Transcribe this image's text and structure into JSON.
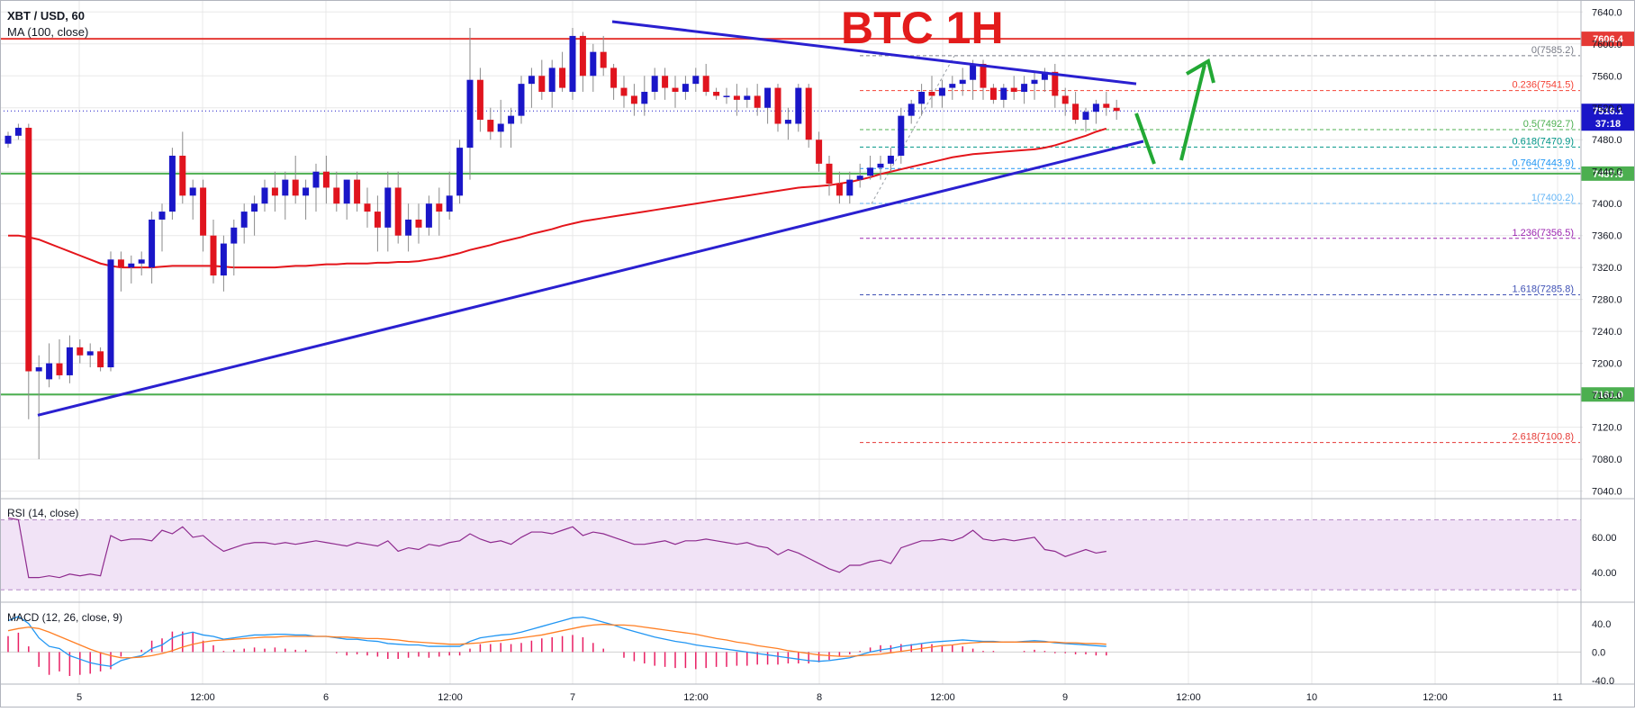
{
  "header": {
    "symbol": "XBT / USD, 60",
    "ma_label": "MA (100, close)",
    "annotation": "BTC  1H"
  },
  "colors": {
    "up": "#1a16c8",
    "down": "#e0141e",
    "trendline": "#2a20d0",
    "ma": "#e4151b",
    "support": "#4caf50",
    "resistance": "#e53935",
    "arrow": "#22a834",
    "rsi_line": "#8e2a8e",
    "rsi_band": "#f1e3f6",
    "macd": "#2196f3",
    "signal": "#ff7f24",
    "hist": "#e91e63",
    "grid": "#e8e8e8"
  },
  "chart_data": [
    {
      "type": "candlestick",
      "title": "XBT / USD, 60",
      "indicator": "MA (100, close)",
      "x_ticks": [
        "5",
        "12:00",
        "6",
        "12:00",
        "7",
        "12:00",
        "8",
        "12:00",
        "9",
        "12:00",
        "10",
        "12:00",
        "11"
      ],
      "y_ticks": [
        7040.0,
        7080.0,
        7120.0,
        7160.0,
        7200.0,
        7240.0,
        7280.0,
        7320.0,
        7360.0,
        7400.0,
        7440.0,
        7480.0,
        7520.0,
        7560.0,
        7600.0,
        7640.0
      ],
      "ylim": [
        7035,
        7655
      ],
      "ohlc": [
        [
          7475,
          7490,
          7470,
          7485
        ],
        [
          7485,
          7500,
          7480,
          7495
        ],
        [
          7495,
          7500,
          7130,
          7190
        ],
        [
          7190,
          7210,
          7080,
          7195
        ],
        [
          7180,
          7225,
          7170,
          7200
        ],
        [
          7200,
          7230,
          7180,
          7185
        ],
        [
          7185,
          7235,
          7175,
          7220
        ],
        [
          7220,
          7230,
          7200,
          7210
        ],
        [
          7210,
          7225,
          7195,
          7215
        ],
        [
          7215,
          7220,
          7190,
          7195
        ],
        [
          7195,
          7340,
          7190,
          7330
        ],
        [
          7330,
          7340,
          7290,
          7320
        ],
        [
          7320,
          7335,
          7300,
          7325
        ],
        [
          7325,
          7340,
          7310,
          7330
        ],
        [
          7320,
          7390,
          7300,
          7380
        ],
        [
          7380,
          7400,
          7340,
          7390
        ],
        [
          7390,
          7470,
          7380,
          7460
        ],
        [
          7460,
          7490,
          7400,
          7410
        ],
        [
          7410,
          7430,
          7380,
          7420
        ],
        [
          7420,
          7430,
          7340,
          7360
        ],
        [
          7360,
          7380,
          7300,
          7310
        ],
        [
          7310,
          7360,
          7290,
          7350
        ],
        [
          7350,
          7380,
          7310,
          7370
        ],
        [
          7370,
          7400,
          7350,
          7390
        ],
        [
          7390,
          7410,
          7360,
          7400
        ],
        [
          7400,
          7430,
          7390,
          7420
        ],
        [
          7420,
          7440,
          7390,
          7410
        ],
        [
          7410,
          7440,
          7380,
          7430
        ],
        [
          7430,
          7460,
          7400,
          7410
        ],
        [
          7410,
          7430,
          7380,
          7420
        ],
        [
          7420,
          7450,
          7390,
          7440
        ],
        [
          7440,
          7460,
          7400,
          7420
        ],
        [
          7420,
          7440,
          7390,
          7400
        ],
        [
          7400,
          7430,
          7380,
          7430
        ],
        [
          7430,
          7440,
          7390,
          7400
        ],
        [
          7400,
          7420,
          7370,
          7390
        ],
        [
          7390,
          7410,
          7340,
          7370
        ],
        [
          7370,
          7440,
          7340,
          7420
        ],
        [
          7420,
          7440,
          7350,
          7360
        ],
        [
          7360,
          7400,
          7340,
          7380
        ],
        [
          7380,
          7400,
          7350,
          7370
        ],
        [
          7370,
          7410,
          7360,
          7400
        ],
        [
          7400,
          7420,
          7360,
          7390
        ],
        [
          7390,
          7440,
          7380,
          7410
        ],
        [
          7410,
          7480,
          7400,
          7470
        ],
        [
          7470,
          7620,
          7430,
          7555
        ],
        [
          7555,
          7570,
          7490,
          7505
        ],
        [
          7505,
          7520,
          7480,
          7490
        ],
        [
          7490,
          7530,
          7470,
          7500
        ],
        [
          7500,
          7520,
          7470,
          7510
        ],
        [
          7510,
          7560,
          7500,
          7550
        ],
        [
          7550,
          7570,
          7520,
          7560
        ],
        [
          7560,
          7580,
          7530,
          7540
        ],
        [
          7540,
          7580,
          7520,
          7570
        ],
        [
          7570,
          7590,
          7540,
          7545
        ],
        [
          7540,
          7620,
          7530,
          7610
        ],
        [
          7610,
          7615,
          7540,
          7560
        ],
        [
          7560,
          7600,
          7540,
          7590
        ],
        [
          7590,
          7610,
          7560,
          7570
        ],
        [
          7570,
          7575,
          7530,
          7545
        ],
        [
          7545,
          7560,
          7520,
          7535
        ],
        [
          7535,
          7550,
          7510,
          7525
        ],
        [
          7525,
          7560,
          7510,
          7540
        ],
        [
          7540,
          7570,
          7530,
          7560
        ],
        [
          7560,
          7570,
          7530,
          7545
        ],
        [
          7545,
          7560,
          7520,
          7540
        ],
        [
          7540,
          7560,
          7530,
          7550
        ],
        [
          7550,
          7570,
          7540,
          7560
        ],
        [
          7560,
          7575,
          7535,
          7540
        ],
        [
          7540,
          7545,
          7530,
          7535
        ],
        [
          7535,
          7545,
          7525,
          7535
        ],
        [
          7535,
          7550,
          7510,
          7530
        ],
        [
          7530,
          7545,
          7520,
          7535
        ],
        [
          7535,
          7550,
          7510,
          7520
        ],
        [
          7520,
          7545,
          7500,
          7545
        ],
        [
          7545,
          7550,
          7490,
          7500
        ],
        [
          7500,
          7520,
          7480,
          7505
        ],
        [
          7500,
          7550,
          7490,
          7545
        ],
        [
          7545,
          7550,
          7470,
          7480
        ],
        [
          7480,
          7490,
          7440,
          7450
        ],
        [
          7450,
          7460,
          7410,
          7425
        ],
        [
          7425,
          7440,
          7400,
          7410
        ],
        [
          7410,
          7440,
          7400,
          7430
        ],
        [
          7430,
          7450,
          7420,
          7435
        ],
        [
          7435,
          7460,
          7430,
          7445
        ],
        [
          7445,
          7460,
          7430,
          7450
        ],
        [
          7450,
          7470,
          7440,
          7460
        ],
        [
          7460,
          7520,
          7450,
          7510
        ],
        [
          7510,
          7530,
          7500,
          7525
        ],
        [
          7525,
          7550,
          7510,
          7540
        ],
        [
          7540,
          7560,
          7520,
          7535
        ],
        [
          7535,
          7555,
          7520,
          7545
        ],
        [
          7545,
          7560,
          7530,
          7550
        ],
        [
          7550,
          7570,
          7535,
          7555
        ],
        [
          7555,
          7580,
          7530,
          7575
        ],
        [
          7575,
          7580,
          7530,
          7545
        ],
        [
          7545,
          7550,
          7525,
          7530
        ],
        [
          7530,
          7550,
          7520,
          7545
        ],
        [
          7545,
          7560,
          7530,
          7540
        ],
        [
          7540,
          7560,
          7525,
          7550
        ],
        [
          7550,
          7565,
          7530,
          7555
        ],
        [
          7555,
          7570,
          7540,
          7565
        ],
        [
          7565,
          7575,
          7520,
          7535
        ],
        [
          7535,
          7545,
          7510,
          7525
        ],
        [
          7525,
          7540,
          7500,
          7505
        ],
        [
          7505,
          7520,
          7490,
          7515
        ],
        [
          7515,
          7530,
          7500,
          7525
        ],
        [
          7525,
          7540,
          7510,
          7520
        ],
        [
          7520,
          7530,
          7505,
          7516
        ]
      ],
      "ma": [
        7360,
        7360,
        7358,
        7355,
        7350,
        7345,
        7340,
        7335,
        7330,
        7325,
        7322,
        7320,
        7320,
        7320,
        7320,
        7321,
        7322,
        7322,
        7322,
        7322,
        7322,
        7321,
        7320,
        7320,
        7320,
        7320,
        7320,
        7321,
        7322,
        7322,
        7323,
        7324,
        7324,
        7325,
        7325,
        7325,
        7326,
        7326,
        7327,
        7327,
        7328,
        7330,
        7332,
        7335,
        7338,
        7342,
        7345,
        7348,
        7352,
        7355,
        7358,
        7362,
        7365,
        7368,
        7372,
        7375,
        7378,
        7380,
        7382,
        7384,
        7386,
        7388,
        7390,
        7392,
        7394,
        7396,
        7398,
        7400,
        7402,
        7404,
        7406,
        7408,
        7410,
        7412,
        7414,
        7416,
        7418,
        7420,
        7421,
        7422,
        7423,
        7425,
        7427,
        7430,
        7433,
        7437,
        7440,
        7443,
        7446,
        7449,
        7452,
        7455,
        7458,
        7460,
        7462,
        7463,
        7464,
        7465,
        7466,
        7467,
        7468,
        7470,
        7473,
        7477,
        7481,
        7485,
        7490,
        7494
      ],
      "ma_label": "MA (100, close)",
      "ma_value": 7437.6
    },
    {
      "type": "fibonacci",
      "levels": [
        {
          "ratio": "0",
          "value": 7585.2,
          "label": "0(7585.2)",
          "color": "#787b86"
        },
        {
          "ratio": "0.236",
          "value": 7541.5,
          "label": "0.236(7541.5)",
          "color": "#f44336"
        },
        {
          "ratio": "0.5",
          "value": 7492.7,
          "label": "0.5(7492.7)",
          "color": "#4caf50"
        },
        {
          "ratio": "0.618",
          "value": 7470.9,
          "label": "0.618(7470.9)",
          "color": "#009688"
        },
        {
          "ratio": "0.764",
          "value": 7443.9,
          "label": "0.764(7443.9)",
          "color": "#2196f3"
        },
        {
          "ratio": "1",
          "value": 7400.2,
          "label": "1(7400.2)",
          "color": "#64b5f6"
        },
        {
          "ratio": "1.236",
          "value": 7356.5,
          "label": "1.236(7356.5)",
          "color": "#9c27b0"
        },
        {
          "ratio": "1.618",
          "value": 7285.8,
          "label": "1.618(7285.8)",
          "color": "#3f51b5"
        },
        {
          "ratio": "2.618",
          "value": 7100.8,
          "label": "2.618(7100.8)",
          "color": "#e53935"
        }
      ]
    },
    {
      "type": "price_levels",
      "levels": [
        {
          "value": 7606.4,
          "label": "7606.4",
          "color": "#e53935",
          "kind": "resistance"
        },
        {
          "value": 7437.6,
          "label": "7437.6",
          "color": "#4caf50",
          "kind": "support"
        },
        {
          "value": 7161.0,
          "label": "7161.0",
          "color": "#4caf50",
          "kind": "support"
        }
      ],
      "last_price": {
        "value": 7516.1,
        "label": "7516.1",
        "countdown": "37:18"
      }
    },
    {
      "type": "line",
      "title": "RSI (14, close)",
      "y_ticks": [
        40.0,
        60.0
      ],
      "ylim": [
        25,
        80
      ],
      "band": [
        30,
        70
      ],
      "values": [
        71,
        70,
        37,
        37,
        38,
        37,
        39,
        38,
        39,
        38,
        61,
        58,
        59,
        59,
        58,
        64,
        62,
        66,
        60,
        61,
        56,
        52,
        54,
        56,
        57,
        57,
        56,
        57,
        56,
        57,
        58,
        57,
        56,
        55,
        57,
        56,
        55,
        58,
        52,
        54,
        53,
        56,
        55,
        57,
        58,
        62,
        59,
        57,
        58,
        56,
        60,
        63,
        63,
        62,
        64,
        66,
        61,
        63,
        62,
        60,
        58,
        56,
        56,
        57,
        58,
        56,
        58,
        58,
        59,
        58,
        57,
        56,
        57,
        55,
        54,
        50,
        53,
        51,
        48,
        45,
        42,
        40,
        44,
        44,
        46,
        47,
        45,
        54,
        56,
        58,
        58,
        59,
        58,
        60,
        64,
        59,
        58,
        59,
        58,
        59,
        60,
        53,
        52,
        49,
        51,
        53,
        51,
        52
      ],
      "color": "#8e2a8e"
    },
    {
      "type": "macd",
      "title": "MACD (12, 26, close, 9)",
      "y_ticks": [
        40.0,
        0.0,
        -40.0
      ],
      "ylim": [
        -45,
        65
      ],
      "macd": [
        44,
        50,
        40,
        20,
        8,
        5,
        -5,
        -10,
        -15,
        -18,
        -20,
        -12,
        -8,
        -5,
        5,
        10,
        20,
        25,
        28,
        24,
        22,
        18,
        20,
        22,
        24,
        24,
        25,
        25,
        24,
        24,
        22,
        22,
        20,
        18,
        18,
        16,
        15,
        12,
        11,
        10,
        10,
        8,
        8,
        8,
        8,
        15,
        20,
        22,
        24,
        25,
        28,
        32,
        36,
        40,
        44,
        48,
        49,
        46,
        42,
        38,
        33,
        29,
        25,
        21,
        18,
        15,
        13,
        10,
        8,
        6,
        4,
        2,
        0,
        -2,
        -4,
        -6,
        -8,
        -10,
        -12,
        -13,
        -12,
        -10,
        -8,
        -4,
        0,
        3,
        5,
        8,
        10,
        12,
        14,
        15,
        16,
        17,
        16,
        15,
        15,
        14,
        14,
        15,
        16,
        15,
        13,
        12,
        11,
        10,
        9,
        8
      ],
      "signal": [
        30,
        33,
        35,
        33,
        28,
        22,
        16,
        10,
        4,
        -1,
        -5,
        -8,
        -8,
        -7,
        -5,
        -2,
        2,
        7,
        11,
        14,
        16,
        17,
        18,
        19,
        20,
        21,
        21,
        22,
        22,
        22,
        22,
        22,
        21,
        21,
        20,
        19,
        19,
        18,
        17,
        15,
        14,
        13,
        12,
        11,
        11,
        12,
        13,
        15,
        16,
        18,
        20,
        22,
        24,
        27,
        30,
        33,
        36,
        38,
        39,
        38,
        38,
        37,
        35,
        33,
        31,
        29,
        27,
        25,
        22,
        19,
        17,
        14,
        12,
        9,
        7,
        5,
        2,
        0,
        -2,
        -4,
        -5,
        -6,
        -6,
        -5,
        -4,
        -3,
        -1,
        1,
        3,
        5,
        7,
        9,
        10,
        12,
        13,
        14,
        14,
        14,
        14,
        14,
        14,
        14,
        14,
        13,
        13,
        12,
        12,
        11
      ],
      "colors": {
        "macd": "#2196f3",
        "signal": "#ff7f24",
        "hist": "#e91e63"
      }
    }
  ],
  "time_axis": [
    "5",
    "12:00",
    "6",
    "12:00",
    "7",
    "12:00",
    "8",
    "12:00",
    "9",
    "12:00",
    "10",
    "12:00",
    "11"
  ]
}
